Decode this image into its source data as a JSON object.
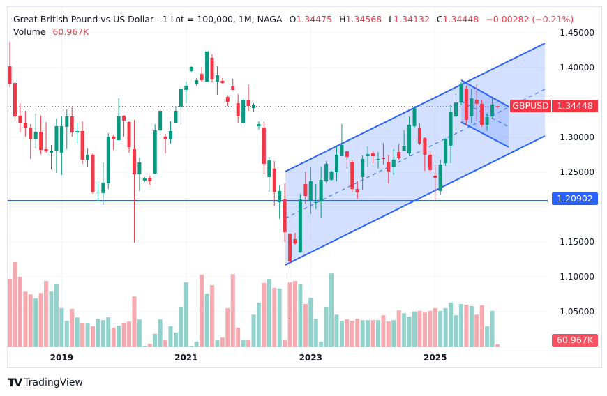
{
  "header": {
    "title": "Great British Pound vs US Dollar - 1 Lot = 100,000, 1M, NAGA",
    "open_label": "O",
    "open": "1.34475",
    "high_label": "H",
    "high": "1.34568",
    "low_label": "L",
    "low": "1.34132",
    "close_label": "C",
    "close": "1.34448",
    "change": "−0.00282 (−0.21%)",
    "volume_label": "Volume",
    "volume": "60.967K"
  },
  "tags": {
    "symbol": "GBPUSD",
    "last_price": "1.34448",
    "hline_price": "1.20902",
    "last_volume": "60.967K"
  },
  "branding": {
    "logo_text": "TradingView"
  },
  "colors": {
    "up": "#089981",
    "down": "#F23645",
    "up_volume": "#92D2CC",
    "down_volume": "#F7A9B0",
    "drawing": "#2962FF",
    "grid": "#F0F3FA"
  },
  "chart_data": {
    "type": "candlestick",
    "symbol": "GBPUSD",
    "interval": "1M",
    "y_axis_ticks": [
      "1.45000",
      "1.40000",
      "1.30000",
      "1.25000",
      "1.15000",
      "1.10000",
      "1.05000"
    ],
    "y_tick_values": [
      1.45,
      1.4,
      1.3,
      1.25,
      1.15,
      1.1,
      1.05
    ],
    "x_axis_ticks": [
      "2019",
      "2021",
      "2023",
      "2025"
    ],
    "x_tick_index": [
      10,
      34,
      58,
      82
    ],
    "horizontal_line": 1.20902,
    "last_price_line": 1.34448,
    "columns": [
      "open",
      "high",
      "low",
      "close",
      "volume_k"
    ],
    "candles": [
      [
        1.402,
        1.437,
        1.372,
        1.377,
        1970
      ],
      [
        1.378,
        1.38,
        1.322,
        1.33,
        2460
      ],
      [
        1.331,
        1.349,
        1.307,
        1.321,
        2030
      ],
      [
        1.321,
        1.338,
        1.301,
        1.314,
        1600
      ],
      [
        1.314,
        1.319,
        1.269,
        1.297,
        1520
      ],
      [
        1.297,
        1.334,
        1.284,
        1.308,
        1400
      ],
      [
        1.308,
        1.331,
        1.276,
        1.282,
        1560
      ],
      [
        1.283,
        1.322,
        1.278,
        1.28,
        1910
      ],
      [
        1.278,
        1.289,
        1.254,
        1.281,
        1600
      ],
      [
        1.281,
        1.327,
        1.249,
        1.316,
        1810
      ],
      [
        1.278,
        1.33,
        1.246,
        1.316,
        1120
      ],
      [
        1.315,
        1.34,
        1.283,
        1.33,
        750
      ],
      [
        1.33,
        1.343,
        1.301,
        1.307,
        1100
      ],
      [
        1.307,
        1.321,
        1.292,
        1.309,
        850
      ],
      [
        1.309,
        1.323,
        1.262,
        1.268,
        670
      ],
      [
        1.268,
        1.284,
        1.257,
        1.275,
        670
      ],
      [
        1.275,
        1.277,
        1.219,
        1.221,
        590
      ],
      [
        1.221,
        1.237,
        1.208,
        1.222,
        810
      ],
      [
        1.22,
        1.264,
        1.203,
        1.235,
        770
      ],
      [
        1.234,
        1.306,
        1.226,
        1.301,
        850
      ],
      [
        1.301,
        1.304,
        1.282,
        1.297,
        550
      ],
      [
        1.296,
        1.356,
        1.296,
        1.33,
        610
      ],
      [
        1.331,
        1.332,
        1.301,
        1.324,
        670
      ],
      [
        1.322,
        1.323,
        1.278,
        1.286,
        730
      ],
      [
        1.283,
        1.325,
        1.149,
        1.247,
        1460
      ],
      [
        1.247,
        1.271,
        1.223,
        1.264,
        790
      ],
      [
        1.238,
        1.243,
        1.236,
        1.241,
        20
      ],
      [
        1.242,
        1.245,
        1.232,
        1.237,
        80
      ],
      [
        1.248,
        1.319,
        1.248,
        1.31,
        370
      ],
      [
        1.31,
        1.341,
        1.303,
        1.338,
        790
      ],
      [
        1.301,
        1.305,
        1.277,
        1.297,
        180
      ],
      [
        1.297,
        1.323,
        1.291,
        1.309,
        590
      ],
      [
        1.321,
        1.344,
        1.321,
        1.338,
        410
      ],
      [
        1.344,
        1.373,
        1.318,
        1.369,
        1160
      ],
      [
        1.368,
        1.38,
        1.349,
        1.374,
        1870
      ],
      [
        1.395,
        1.402,
        1.394,
        1.401,
        20
      ],
      [
        1.377,
        1.385,
        1.374,
        1.382,
        140
      ],
      [
        1.391,
        1.401,
        1.38,
        1.382,
        2090
      ],
      [
        1.38,
        1.424,
        1.38,
        1.423,
        1540
      ],
      [
        1.414,
        1.419,
        1.379,
        1.383,
        1790
      ],
      [
        1.38,
        1.402,
        1.361,
        1.389,
        180
      ],
      [
        1.381,
        1.385,
        1.377,
        1.378,
        260
      ],
      [
        1.358,
        1.36,
        1.345,
        1.351,
        1120
      ],
      [
        1.374,
        1.384,
        1.368,
        1.368,
        2110
      ],
      [
        1.349,
        1.362,
        1.321,
        1.33,
        550
      ],
      [
        1.321,
        1.356,
        1.319,
        1.353,
        180
      ],
      [
        1.353,
        1.376,
        1.338,
        1.345,
        180
      ],
      [
        1.342,
        1.349,
        1.337,
        1.347,
        930
      ],
      [
        1.316,
        1.323,
        1.311,
        1.319,
        1280
      ],
      [
        1.314,
        1.322,
        1.248,
        1.262,
        1850
      ],
      [
        1.243,
        1.272,
        1.222,
        1.267,
        1970
      ],
      [
        1.255,
        1.266,
        1.201,
        1.222,
        1710
      ],
      [
        1.207,
        1.231,
        1.183,
        1.223,
        1690
      ],
      [
        1.211,
        1.234,
        1.15,
        1.164,
        180
      ],
      [
        1.162,
        1.181,
        1.04,
        1.122,
        1870
      ],
      [
        1.154,
        1.163,
        1.146,
        1.148,
        1910
      ],
      [
        1.135,
        1.219,
        1.134,
        1.211,
        1810
      ],
      [
        1.233,
        1.251,
        1.205,
        1.216,
        1240
      ],
      [
        1.21,
        1.257,
        1.19,
        1.237,
        1420
      ],
      [
        1.206,
        1.233,
        1.197,
        1.207,
        810
      ],
      [
        1.208,
        1.258,
        1.185,
        1.239,
        140
      ],
      [
        1.237,
        1.266,
        1.235,
        1.262,
        1160
      ],
      [
        1.239,
        1.252,
        1.238,
        1.251,
        2130
      ],
      [
        1.25,
        1.287,
        1.237,
        1.275,
        930
      ],
      [
        1.273,
        1.319,
        1.275,
        1.289,
        750
      ],
      [
        1.28,
        1.28,
        1.255,
        1.272,
        790
      ],
      [
        1.265,
        1.268,
        1.221,
        1.226,
        750
      ],
      [
        1.226,
        1.237,
        1.212,
        1.221,
        810
      ],
      [
        1.243,
        1.274,
        1.225,
        1.269,
        770
      ],
      [
        1.273,
        1.287,
        1.257,
        1.276,
        770
      ],
      [
        1.277,
        1.28,
        1.263,
        1.273,
        770
      ],
      [
        1.269,
        1.279,
        1.255,
        1.269,
        770
      ],
      [
        1.271,
        1.292,
        1.261,
        1.269,
        910
      ],
      [
        1.265,
        1.275,
        1.234,
        1.251,
        730
      ],
      [
        1.257,
        1.283,
        1.246,
        1.268,
        770
      ],
      [
        1.279,
        1.291,
        1.268,
        1.27,
        1060
      ],
      [
        1.281,
        1.31,
        1.281,
        1.288,
        970
      ],
      [
        1.277,
        1.33,
        1.273,
        1.318,
        870
      ],
      [
        1.316,
        1.345,
        1.313,
        1.342,
        1020
      ],
      [
        1.313,
        1.32,
        1.289,
        1.291,
        1040
      ],
      [
        1.299,
        1.3,
        1.252,
        1.275,
        990
      ],
      [
        1.275,
        1.28,
        1.25,
        1.253,
        1040
      ],
      [
        1.245,
        1.261,
        1.21,
        1.242,
        1120
      ],
      [
        1.223,
        1.268,
        1.218,
        1.261,
        1040
      ],
      [
        1.263,
        1.299,
        1.259,
        1.297,
        1120
      ],
      [
        1.288,
        1.347,
        1.263,
        1.337,
        1280
      ],
      [
        1.33,
        1.362,
        1.31,
        1.35,
        910
      ],
      [
        1.35,
        1.379,
        1.346,
        1.377,
        1240
      ],
      [
        1.369,
        1.374,
        1.318,
        1.325,
        1220
      ],
      [
        1.33,
        1.369,
        1.32,
        1.356,
        1180
      ],
      [
        1.354,
        1.376,
        1.323,
        1.348,
        930
      ],
      [
        1.348,
        1.353,
        1.315,
        1.318,
        1200
      ],
      [
        1.318,
        1.335,
        1.309,
        1.329,
        590
      ],
      [
        1.33,
        1.357,
        1.326,
        1.347,
        1040
      ],
      [
        1.34475,
        1.34568,
        1.34132,
        1.34448,
        61
      ]
    ]
  }
}
